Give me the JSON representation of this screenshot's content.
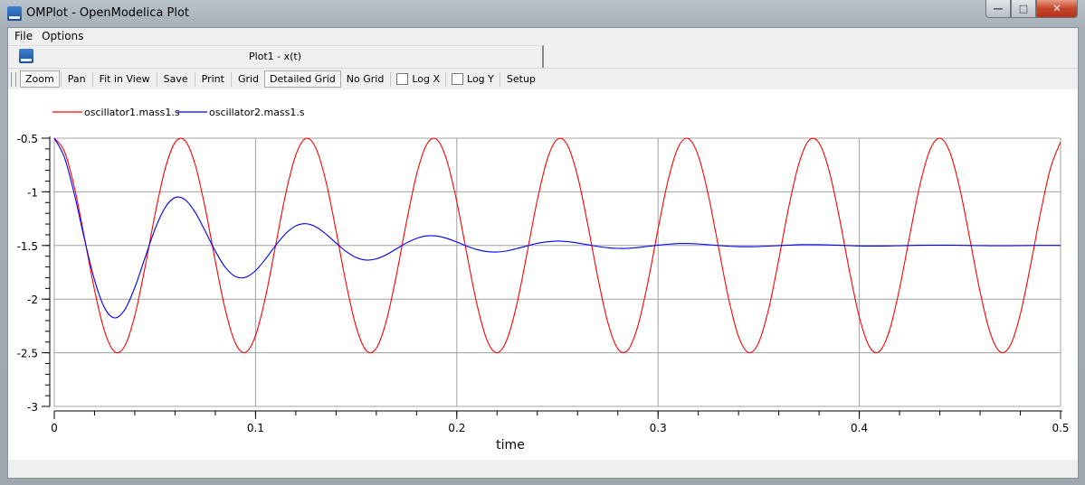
{
  "window": {
    "title": "OMPlot - OpenModelica Plot"
  },
  "menu": [
    "File",
    "Options"
  ],
  "tab": {
    "title": "Plot1 - x(t)"
  },
  "toolbar": {
    "zoom": "Zoom",
    "pan": "Pan",
    "fit": "Fit in View",
    "save": "Save",
    "print": "Print",
    "grid": "Grid",
    "detailed_grid": "Detailed Grid",
    "no_grid": "No Grid",
    "log_x": "Log X",
    "log_y": "Log Y",
    "setup": "Setup",
    "zoom_active": true,
    "detailed_grid_active": true,
    "log_x_checked": false,
    "log_y_checked": false
  },
  "chart_data": {
    "type": "line",
    "xlabel": "time",
    "ylabel": "",
    "xlim": [
      0,
      0.5
    ],
    "ylim": [
      -3,
      -0.5
    ],
    "xticks": [
      "0",
      "0.1",
      "0.2",
      "0.3",
      "0.4",
      "0.5"
    ],
    "yticks": [
      "-0.5",
      "-1",
      "-1.5",
      "-2",
      "-2.5",
      "-3"
    ],
    "grid": true,
    "legend": "top-left",
    "x": [
      0,
      0.005,
      0.01,
      0.015,
      0.02,
      0.025,
      0.03,
      0.035,
      0.04,
      0.045,
      0.05,
      0.055,
      0.06,
      0.065,
      0.07,
      0.075,
      0.08,
      0.085,
      0.09,
      0.095,
      0.1,
      0.105,
      0.11,
      0.115,
      0.12,
      0.125,
      0.13,
      0.135,
      0.14,
      0.145,
      0.15,
      0.155,
      0.16,
      0.165,
      0.17,
      0.175,
      0.18,
      0.185,
      0.19,
      0.195,
      0.2,
      0.205,
      0.21,
      0.215,
      0.22,
      0.225,
      0.23,
      0.235,
      0.24,
      0.245,
      0.25,
      0.255,
      0.26,
      0.265,
      0.27,
      0.275,
      0.28,
      0.285,
      0.29,
      0.295,
      0.3,
      0.305,
      0.31,
      0.315,
      0.32,
      0.325,
      0.33,
      0.335,
      0.34,
      0.345,
      0.35,
      0.355,
      0.36,
      0.365,
      0.37,
      0.375,
      0.38,
      0.385,
      0.39,
      0.395,
      0.4,
      0.405,
      0.41,
      0.415,
      0.42,
      0.425,
      0.43,
      0.435,
      0.44,
      0.445,
      0.45,
      0.455,
      0.46,
      0.465,
      0.47,
      0.475,
      0.48,
      0.485,
      0.49,
      0.495,
      0.5
    ],
    "series": [
      {
        "name": "oscillator1.mass1.s",
        "color": "#ff0000",
        "values": [
          -0.5,
          -0.622,
          -0.96,
          -1.429,
          -1.916,
          -2.301,
          -2.49,
          -2.437,
          -2.154,
          -1.711,
          -1.216,
          -0.791,
          -0.54,
          -0.523,
          -0.746,
          -1.153,
          -1.646,
          -2.102,
          -2.411,
          -2.497,
          -2.339,
          -1.976,
          -1.496,
          -1.017,
          -0.656,
          -0.502,
          -0.593,
          -0.905,
          -1.363,
          -1.855,
          -2.26,
          -2.479,
          -2.458,
          -2.202,
          -1.775,
          -1.281,
          -0.84,
          -0.561,
          -0.511,
          -0.704,
          -1.092,
          -1.58,
          -2.048,
          -2.382,
          -2.5,
          -2.373,
          -2.033,
          -1.562,
          -1.076,
          -0.694,
          -0.509,
          -0.566,
          -0.853,
          -1.298,
          -1.792,
          -2.215,
          -2.463,
          -2.475,
          -2.248,
          -1.838,
          -1.346,
          -0.891,
          -0.585,
          -0.503,
          -0.665,
          -1.032,
          -1.513,
          -1.991,
          -2.349,
          -2.498,
          -2.404,
          -2.088,
          -1.628,
          -1.137,
          -0.735,
          -0.52,
          -0.545,
          -0.804,
          -1.233,
          -1.728,
          -2.167,
          -2.443,
          -2.487,
          -2.29,
          -1.9,
          -1.412,
          -0.945,
          -0.614,
          -0.5,
          -0.631,
          -0.975,
          -1.447,
          -1.932,
          -2.312,
          -2.492,
          -2.431,
          -2.14,
          -1.693,
          -1.199,
          -0.779,
          -0.535
        ]
      },
      {
        "name": "oscillator2.mass1.s",
        "color": "#0000ff",
        "values": [
          -0.5,
          -0.677,
          -1.024,
          -1.442,
          -1.822,
          -2.082,
          -2.175,
          -2.099,
          -1.892,
          -1.619,
          -1.35,
          -1.149,
          -1.053,
          -1.074,
          -1.191,
          -1.367,
          -1.552,
          -1.704,
          -1.789,
          -1.797,
          -1.734,
          -1.625,
          -1.499,
          -1.389,
          -1.317,
          -1.297,
          -1.327,
          -1.394,
          -1.477,
          -1.556,
          -1.612,
          -1.636,
          -1.625,
          -1.586,
          -1.531,
          -1.476,
          -1.434,
          -1.411,
          -1.412,
          -1.434,
          -1.468,
          -1.506,
          -1.538,
          -1.557,
          -1.561,
          -1.55,
          -1.528,
          -1.503,
          -1.48,
          -1.465,
          -1.459,
          -1.464,
          -1.477,
          -1.493,
          -1.509,
          -1.521,
          -1.527,
          -1.526,
          -1.519,
          -1.508,
          -1.497,
          -1.488,
          -1.482,
          -1.482,
          -1.486,
          -1.493,
          -1.5,
          -1.507,
          -1.511,
          -1.512,
          -1.51,
          -1.506,
          -1.501,
          -1.497,
          -1.493,
          -1.492,
          -1.493,
          -1.495,
          -1.498,
          -1.501,
          -1.504,
          -1.505,
          -1.505,
          -1.504,
          -1.502,
          -1.5,
          -1.498,
          -1.497,
          -1.497,
          -1.497,
          -1.498,
          -1.5,
          -1.501,
          -1.502,
          -1.502,
          -1.502,
          -1.501,
          -1.5,
          -1.499,
          -1.499,
          -1.5
        ]
      }
    ]
  }
}
